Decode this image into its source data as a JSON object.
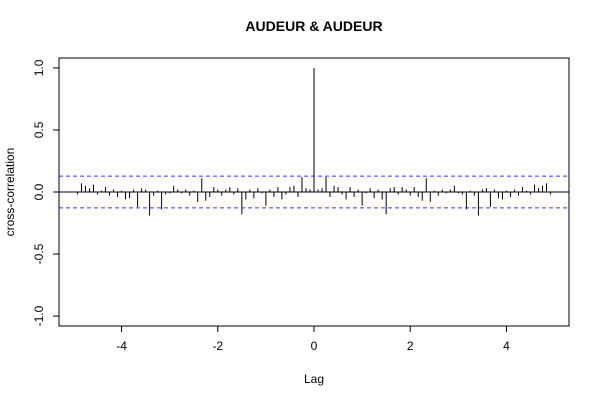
{
  "chart_data": {
    "type": "bar",
    "title": "AUDEUR & AUDEUR",
    "xlabel": "Lag",
    "ylabel": "cross-correlation",
    "xlim": [
      -5.3,
      5.3
    ],
    "ylim": [
      -1.08,
      1.08
    ],
    "x_ticks": [
      -4,
      -2,
      0,
      2,
      4
    ],
    "x_tick_labels": [
      "-4",
      "-2",
      "0",
      "2",
      "4"
    ],
    "y_ticks": [
      -1.0,
      -0.5,
      0.0,
      0.5,
      1.0
    ],
    "y_tick_labels": [
      "-1.0",
      "-0.5",
      "0.0",
      "0.5",
      "1.0"
    ],
    "confidence_band": 0.128,
    "lag_step": 0.0833,
    "lags": [
      -4.917,
      -4.833,
      -4.75,
      -4.667,
      -4.583,
      -4.5,
      -4.417,
      -4.333,
      -4.25,
      -4.167,
      -4.083,
      -4.0,
      -3.917,
      -3.833,
      -3.75,
      -3.667,
      -3.583,
      -3.5,
      -3.417,
      -3.333,
      -3.25,
      -3.167,
      -3.083,
      -3.0,
      -2.917,
      -2.833,
      -2.75,
      -2.667,
      -2.583,
      -2.5,
      -2.417,
      -2.333,
      -2.25,
      -2.167,
      -2.083,
      -2.0,
      -1.917,
      -1.833,
      -1.75,
      -1.667,
      -1.583,
      -1.5,
      -1.417,
      -1.333,
      -1.25,
      -1.167,
      -1.083,
      -1.0,
      -0.917,
      -0.833,
      -0.75,
      -0.667,
      -0.583,
      -0.5,
      -0.417,
      -0.333,
      -0.25,
      -0.167,
      -0.083,
      0.0,
      0.083,
      0.167,
      0.25,
      0.333,
      0.417,
      0.5,
      0.583,
      0.667,
      0.75,
      0.833,
      0.917,
      1.0,
      1.083,
      1.167,
      1.25,
      1.333,
      1.417,
      1.5,
      1.583,
      1.667,
      1.75,
      1.833,
      1.917,
      2.0,
      2.083,
      2.167,
      2.25,
      2.333,
      2.417,
      2.5,
      2.583,
      2.667,
      2.75,
      2.833,
      2.917,
      3.0,
      3.083,
      3.167,
      3.25,
      3.333,
      3.417,
      3.5,
      3.583,
      3.667,
      3.75,
      3.833,
      3.917,
      4.0,
      4.083,
      4.167,
      4.25,
      4.333,
      4.417,
      4.5,
      4.583,
      4.667,
      4.75,
      4.833,
      4.917
    ],
    "values": [
      -0.02,
      0.07,
      0.05,
      0.03,
      0.06,
      -0.02,
      0.01,
      0.04,
      -0.03,
      0.02,
      -0.04,
      0.01,
      -0.06,
      -0.05,
      0.02,
      -0.12,
      0.03,
      0.02,
      -0.19,
      -0.03,
      0.01,
      -0.14,
      -0.02,
      -0.01,
      0.05,
      0.02,
      -0.01,
      0.02,
      -0.03,
      0.01,
      -0.08,
      0.11,
      -0.07,
      -0.04,
      0.04,
      0.02,
      -0.03,
      0.02,
      0.04,
      -0.02,
      0.03,
      -0.18,
      -0.06,
      0.02,
      -0.05,
      0.03,
      -0.01,
      -0.11,
      0.02,
      -0.04,
      0.04,
      -0.06,
      -0.02,
      0.04,
      0.05,
      -0.04,
      0.12,
      0.03,
      0.02,
      1.0,
      0.02,
      0.03,
      0.12,
      -0.04,
      0.05,
      0.04,
      -0.02,
      -0.06,
      0.04,
      -0.04,
      0.02,
      -0.11,
      -0.01,
      0.03,
      -0.05,
      0.02,
      -0.06,
      -0.18,
      0.03,
      0.04,
      -0.02,
      0.04,
      0.02,
      -0.03,
      0.04,
      -0.04,
      -0.07,
      0.11,
      -0.08,
      0.01,
      -0.03,
      0.02,
      -0.01,
      0.02,
      0.05,
      -0.01,
      -0.02,
      -0.14,
      0.01,
      -0.03,
      -0.19,
      0.02,
      0.03,
      -0.12,
      0.02,
      -0.05,
      -0.06,
      0.01,
      -0.04,
      0.02,
      -0.03,
      0.04,
      0.01,
      -0.02,
      0.06,
      0.03,
      0.05,
      0.07,
      -0.02
    ],
    "colors": {
      "bars": "#000000",
      "band": "#3333ff",
      "axes": "#000000"
    }
  }
}
